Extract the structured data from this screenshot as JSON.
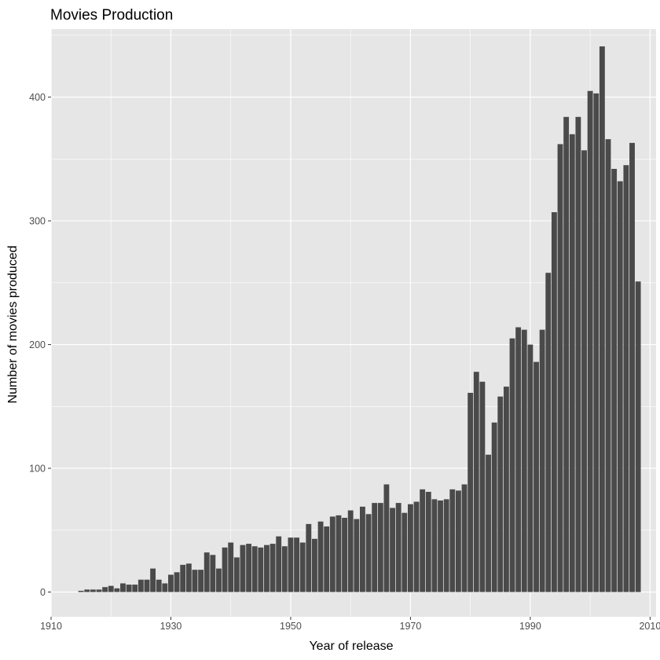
{
  "chart_data": {
    "type": "bar",
    "title": "Movies Production",
    "xlabel": "Year of release",
    "ylabel": "Number of movies produced",
    "xlim": [
      1910,
      2011
    ],
    "ylim": [
      -20,
      455
    ],
    "x_ticks": [
      1910,
      1930,
      1950,
      1970,
      1990,
      2010
    ],
    "y_ticks": [
      0,
      100,
      200,
      300,
      400
    ],
    "grid": true,
    "legend": "none",
    "colors": {
      "bar": "#4a4a4a",
      "panel": "#e6e6e6",
      "grid": "#ffffff",
      "tick_text": "#4d4d4d",
      "tick_mark": "#333333"
    },
    "x": [
      1915,
      1916,
      1917,
      1918,
      1919,
      1920,
      1921,
      1922,
      1923,
      1924,
      1925,
      1926,
      1927,
      1928,
      1929,
      1930,
      1931,
      1932,
      1933,
      1934,
      1935,
      1936,
      1937,
      1938,
      1939,
      1940,
      1941,
      1942,
      1943,
      1944,
      1945,
      1946,
      1947,
      1948,
      1949,
      1950,
      1951,
      1952,
      1953,
      1954,
      1955,
      1956,
      1957,
      1958,
      1959,
      1960,
      1961,
      1962,
      1963,
      1964,
      1965,
      1966,
      1967,
      1968,
      1969,
      1970,
      1971,
      1972,
      1973,
      1974,
      1975,
      1976,
      1977,
      1978,
      1979,
      1980,
      1981,
      1982,
      1983,
      1984,
      1985,
      1986,
      1987,
      1988,
      1989,
      1990,
      1991,
      1992,
      1993,
      1994,
      1995,
      1996,
      1997,
      1998,
      1999,
      2000,
      2001,
      2002,
      2003,
      2004,
      2005,
      2006,
      2007,
      2008
    ],
    "values": [
      1,
      2,
      2,
      2,
      4,
      5,
      3,
      7,
      6,
      6,
      10,
      10,
      19,
      10,
      7,
      14,
      16,
      22,
      23,
      18,
      18,
      32,
      30,
      19,
      36,
      40,
      28,
      38,
      39,
      37,
      36,
      38,
      39,
      45,
      37,
      44,
      44,
      40,
      55,
      43,
      57,
      53,
      61,
      62,
      60,
      66,
      59,
      69,
      63,
      72,
      72,
      87,
      68,
      72,
      64,
      71,
      73,
      83,
      81,
      75,
      74,
      75,
      83,
      82,
      87,
      161,
      178,
      170,
      111,
      137,
      158,
      166,
      205,
      214,
      212,
      200,
      186,
      212,
      258,
      307,
      362,
      384,
      370,
      384,
      357,
      405,
      403,
      441,
      366,
      342,
      332,
      345,
      363,
      251
    ]
  }
}
